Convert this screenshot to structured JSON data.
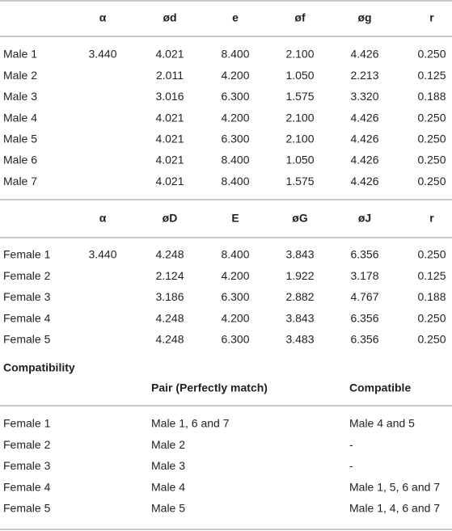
{
  "male_table": {
    "header": [
      null,
      "α",
      "ød",
      "e",
      "øf",
      "øg",
      "r"
    ],
    "rows": [
      [
        "Male 1",
        "3.440",
        "4.021",
        "8.400",
        "2.100",
        "4.426",
        "0.250"
      ],
      [
        "Male 2",
        null,
        "2.011",
        "4.200",
        "1.050",
        "2.213",
        "0.125"
      ],
      [
        "Male 3",
        null,
        "3.016",
        "6.300",
        "1.575",
        "3.320",
        "0.188"
      ],
      [
        "Male 4",
        null,
        "4.021",
        "4.200",
        "2.100",
        "4.426",
        "0.250"
      ],
      [
        "Male 5",
        null,
        "4.021",
        "6.300",
        "2.100",
        "4.426",
        "0.250"
      ],
      [
        "Male 6",
        null,
        "4.021",
        "8.400",
        "1.050",
        "4.426",
        "0.250"
      ],
      [
        "Male 7",
        null,
        "4.021",
        "8.400",
        "1.575",
        "4.426",
        "0.250"
      ]
    ]
  },
  "female_table": {
    "header": [
      null,
      "α",
      "øD",
      "E",
      "øG",
      "øJ",
      "r"
    ],
    "rows": [
      [
        "Female 1",
        "3.440",
        "4.248",
        "8.400",
        "3.843",
        "6.356",
        "0.250"
      ],
      [
        "Female 2",
        null,
        "2.124",
        "4.200",
        "1.922",
        "3.178",
        "0.125"
      ],
      [
        "Female 3",
        null,
        "3.186",
        "6.300",
        "2.882",
        "4.767",
        "0.188"
      ],
      [
        "Female 4",
        null,
        "4.248",
        "4.200",
        "3.843",
        "6.356",
        "0.250"
      ],
      [
        "Female 5",
        null,
        "4.248",
        "6.300",
        "3.483",
        "6.356",
        "0.250"
      ]
    ]
  },
  "compatibility": {
    "title": "Compatibility",
    "header": [
      "Pair (Perfectly match)",
      "Compatible"
    ],
    "rows": [
      [
        "Female 1",
        "Male 1, 6 and 7",
        "Male 4 and 5"
      ],
      [
        "Female 2",
        "Male 2",
        "-"
      ],
      [
        "Female 3",
        "Male 3",
        "-"
      ],
      [
        "Female 4",
        "Male 4",
        "Male 1, 5, 6 and 7"
      ],
      [
        "Female 5",
        "Male 5",
        "Male 1, 4, 6 and 7"
      ]
    ]
  }
}
